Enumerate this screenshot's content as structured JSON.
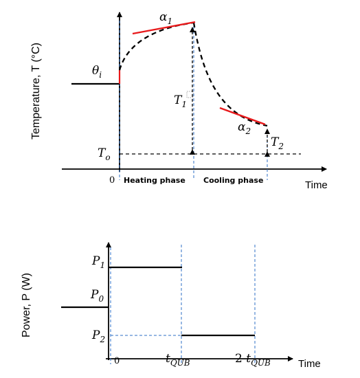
{
  "top_plot": {
    "y_axis_label": "Temperature, T (°C)",
    "x_axis_label": "Time",
    "origin_label": "0",
    "heating_phase_label": "Heating phase",
    "cooling_phase_label": "Cooling phase",
    "theta_i": {
      "base": "θ",
      "sub": "i"
    },
    "alpha_1": {
      "base": "α",
      "sub": "1"
    },
    "alpha_2": {
      "base": "α",
      "sub": "2"
    },
    "T1": {
      "base": "T",
      "sub": "1"
    },
    "T2": {
      "base": "T",
      "sub": "2"
    },
    "To": {
      "base": "T",
      "sub": "o"
    }
  },
  "bottom_plot": {
    "y_axis_label": "Power, P (W)",
    "x_axis_label": "Time",
    "origin_label": "0",
    "P1": {
      "base": "P",
      "sub": "1"
    },
    "P0": {
      "base": "P",
      "sub": "0"
    },
    "P2": {
      "base": "P",
      "sub": "2"
    },
    "t_qub": {
      "base": "t",
      "sub": "QUB"
    },
    "two_t_qub": {
      "prefix": "2 ",
      "base": "t",
      "sub": "QUB"
    }
  },
  "colors": {
    "axis": "#000000",
    "tangent": "#e8191b",
    "guide": "#2e6fc4",
    "curve": "#000000"
  }
}
